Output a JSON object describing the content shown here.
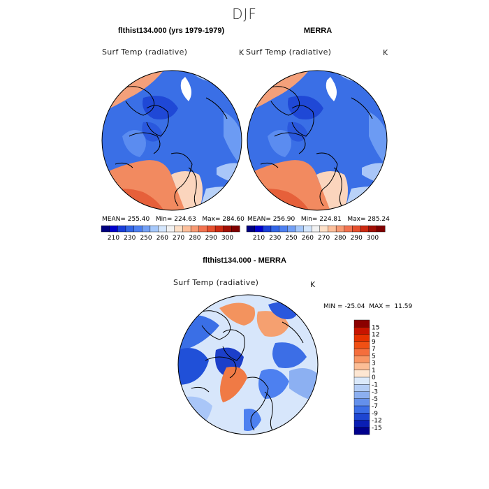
{
  "title": "DJF",
  "chart_data": [
    {
      "type": "heatmap",
      "title": "flthist134.000 (yrs 1979-1979)",
      "variable": "Surf Temp (radiative)",
      "units": "K",
      "projection": "north polar stereographic",
      "stats": {
        "mean_label": "MEAN=",
        "mean": "255.40",
        "min_label": "Min=",
        "min": "224.63",
        "max_label": "Max=",
        "max": "284.60"
      },
      "colorbar": {
        "orientation": "horizontal",
        "levels": [
          "210",
          "230",
          "250",
          "260",
          "270",
          "280",
          "290",
          "300"
        ],
        "colors": [
          "#00007f",
          "#0000cc",
          "#1a3fd9",
          "#3366e6",
          "#4d80f0",
          "#73a0f5",
          "#a6c8fa",
          "#d4e6fc",
          "#f2f2f2",
          "#fde0c8",
          "#fcbf9b",
          "#f79a73",
          "#f27350",
          "#e6502e",
          "#cc2a12",
          "#a10f05",
          "#7f0000"
        ]
      }
    },
    {
      "type": "heatmap",
      "title": "MERRA",
      "variable": "Surf Temp (radiative)",
      "units": "K",
      "projection": "north polar stereographic",
      "stats": {
        "mean_label": "MEAN=",
        "mean": "256.90",
        "min_label": "Min=",
        "min": "224.81",
        "max_label": "Max=",
        "max": "285.24"
      },
      "colorbar": {
        "orientation": "horizontal",
        "levels": [
          "210",
          "230",
          "250",
          "260",
          "270",
          "280",
          "290",
          "300"
        ],
        "colors": [
          "#00007f",
          "#0000cc",
          "#1a3fd9",
          "#3366e6",
          "#4d80f0",
          "#73a0f5",
          "#a6c8fa",
          "#d4e6fc",
          "#f2f2f2",
          "#fde0c8",
          "#fcbf9b",
          "#f79a73",
          "#f27350",
          "#e6502e",
          "#cc2a12",
          "#a10f05",
          "#7f0000"
        ]
      }
    },
    {
      "type": "heatmap",
      "title": "flthist134.000 - MERRA",
      "variable": "Surf Temp (radiative)",
      "units": "K",
      "projection": "north polar stereographic",
      "stats": {
        "min_label": "MIN =",
        "min": "-25.04",
        "max_label": "MAX =",
        "max": "11.59"
      },
      "colorbar": {
        "orientation": "vertical",
        "levels": [
          "15",
          "12",
          "9",
          "7",
          "5",
          "3",
          "1",
          "0",
          "-1",
          "-3",
          "-5",
          "-7",
          "-9",
          "-12",
          "-15"
        ],
        "colors": [
          "#8b0000",
          "#c81400",
          "#e63200",
          "#f05014",
          "#f56e3c",
          "#f99664",
          "#fcbe96",
          "#fde6d2",
          "#dbe9fa",
          "#b4cdf5",
          "#8caff0",
          "#6490eb",
          "#3c6ee6",
          "#1e46d2",
          "#0a1eb4",
          "#00008c"
        ]
      }
    }
  ]
}
